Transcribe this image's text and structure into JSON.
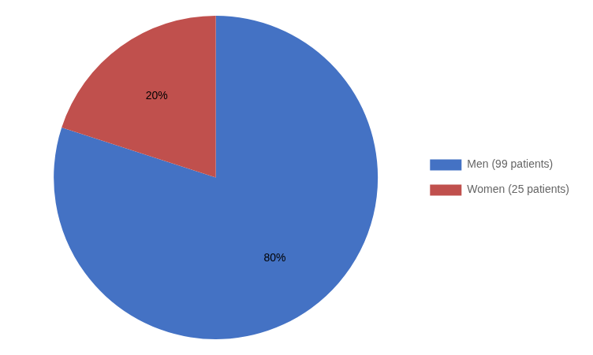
{
  "chart_data": {
    "type": "pie",
    "categories": [
      "Men (99 patients)",
      "Women (25 patients)"
    ],
    "values": [
      80,
      20
    ],
    "value_labels": [
      "80%",
      "20%"
    ],
    "colors": [
      "#4472C4",
      "#C0504D"
    ],
    "data_labels": true,
    "legend": "right"
  }
}
